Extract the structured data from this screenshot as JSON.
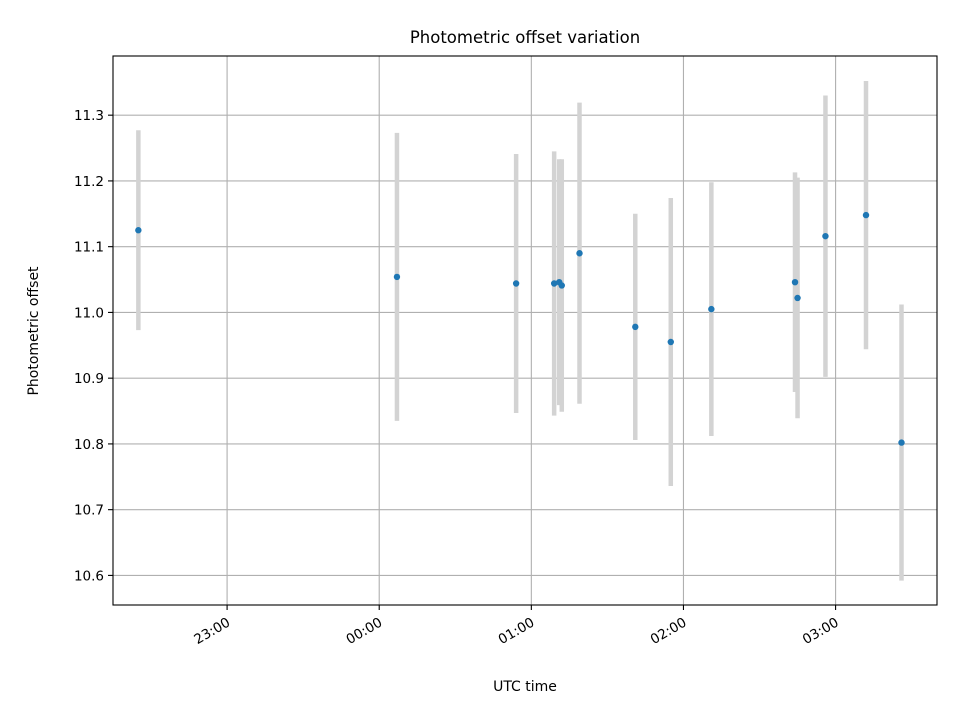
{
  "chart_data": {
    "type": "scatter",
    "title": "Photometric offset variation",
    "xlabel": "UTC time",
    "ylabel": "Photometric offset",
    "xlim": [
      "22:15",
      "03:40"
    ],
    "ylim": [
      10.555,
      11.39
    ],
    "x_ticks": [
      "23:00",
      "00:00",
      "01:00",
      "02:00",
      "03:00"
    ],
    "y_ticks": [
      10.6,
      10.7,
      10.8,
      10.9,
      11.0,
      11.1,
      11.2,
      11.3
    ],
    "grid": true,
    "errorbar_color": "#d3d3d3",
    "point_color": "#1f77b4",
    "series": [
      {
        "points": [
          {
            "x": "22:25",
            "y": 11.125,
            "err": 0.152
          },
          {
            "x": "00:07",
            "y": 11.054,
            "err": 0.219
          },
          {
            "x": "00:54",
            "y": 11.044,
            "err": 0.197
          },
          {
            "x": "01:09",
            "y": 11.044,
            "err": 0.201
          },
          {
            "x": "01:11",
            "y": 11.046,
            "err": 0.187
          },
          {
            "x": "01:12",
            "y": 11.041,
            "err": 0.192
          },
          {
            "x": "01:19",
            "y": 11.09,
            "err": 0.229
          },
          {
            "x": "01:41",
            "y": 10.978,
            "err": 0.172
          },
          {
            "x": "01:55",
            "y": 10.955,
            "err": 0.219
          },
          {
            "x": "02:11",
            "y": 11.005,
            "err": 0.193
          },
          {
            "x": "02:44",
            "y": 11.046,
            "err": 0.167
          },
          {
            "x": "02:45",
            "y": 11.022,
            "err": 0.183
          },
          {
            "x": "02:56",
            "y": 11.116,
            "err": 0.214
          },
          {
            "x": "03:12",
            "y": 11.148,
            "err": 0.204
          },
          {
            "x": "03:26",
            "y": 10.802,
            "err": 0.21
          }
        ]
      }
    ]
  }
}
